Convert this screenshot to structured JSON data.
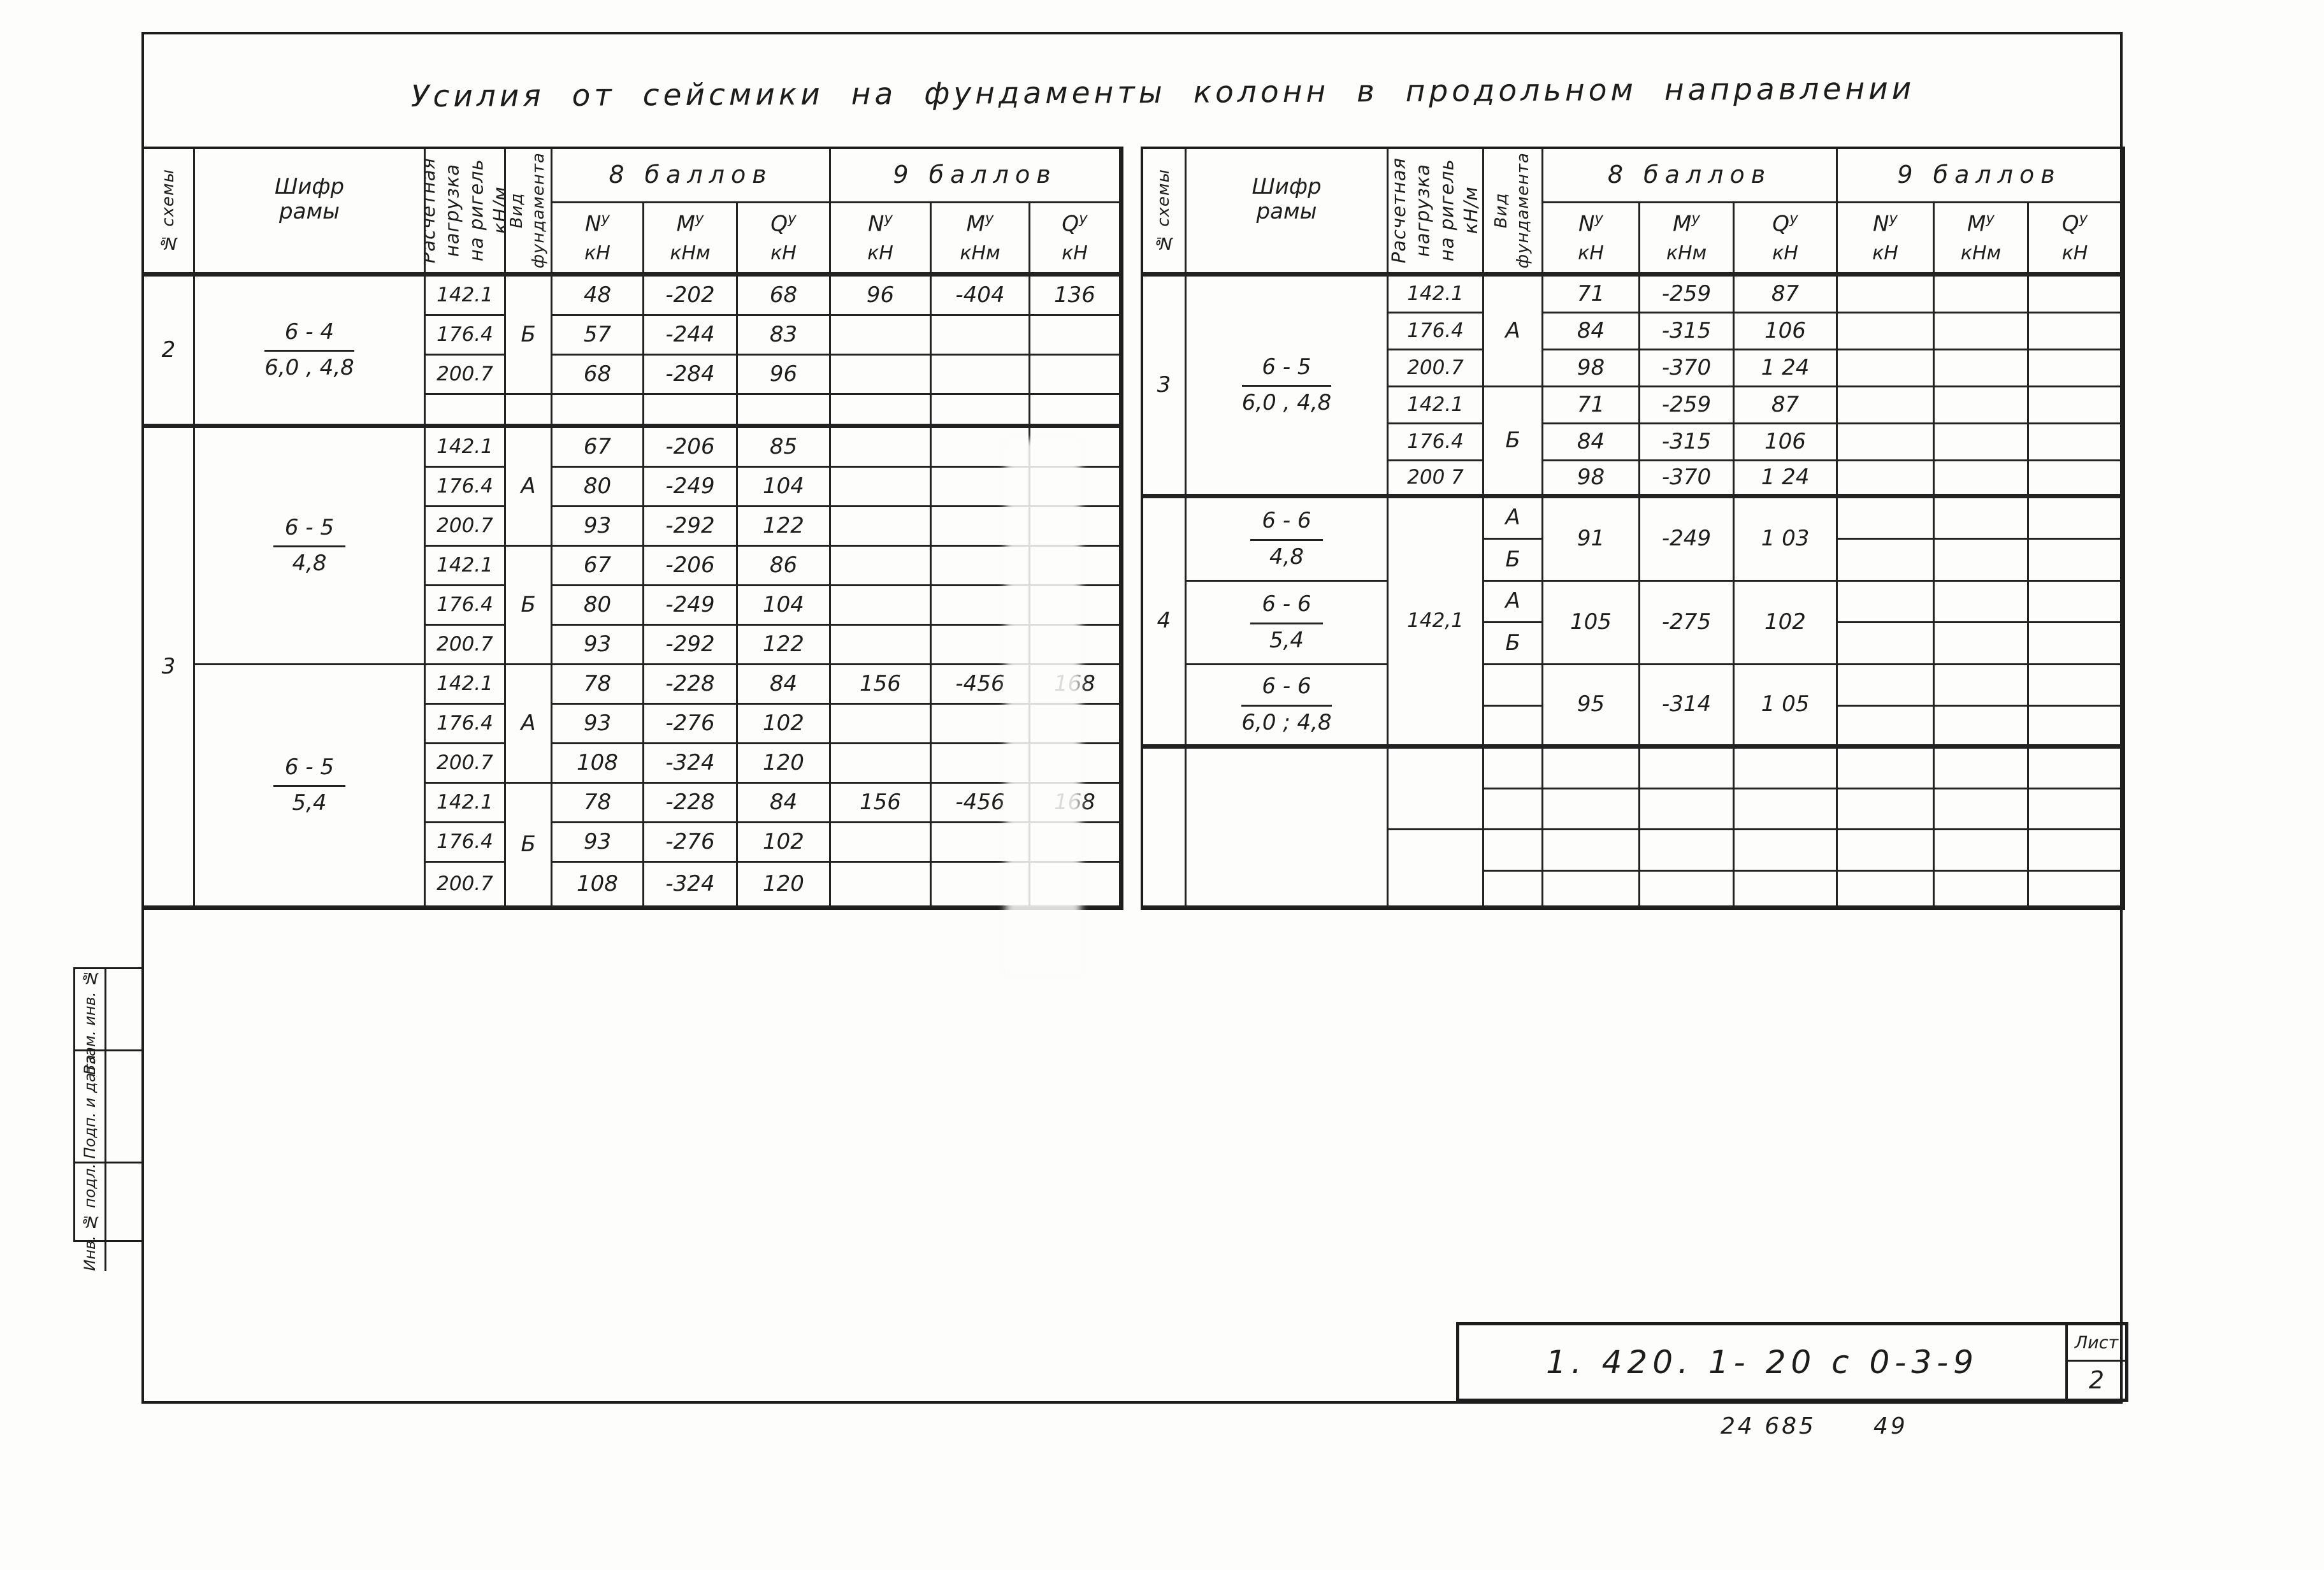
{
  "title": "Усилия  от  сейсмики   на  фундаменты  колонн  в  продольном   направлении",
  "common": {
    "sup": "у"
  },
  "side_stamp": {
    "boxes": [
      {
        "label": "Взам. инв. №"
      },
      {
        "label": "Подп. и дата"
      },
      {
        "label": "Инв. № подл."
      }
    ]
  },
  "title_block": {
    "doc_number": "1. 420. 1- 20 с   0-3-9",
    "sheet_label": "Лист",
    "sheet_number": "2",
    "code_left": "24 685",
    "code_right": "49"
  },
  "left_table": {
    "cells": [
      {
        "r": 1,
        "c": 1,
        "rs": 2,
        "rot": true,
        "t": "№ схемы",
        "n": "column-header-scheme"
      },
      {
        "r": 1,
        "c": 2,
        "rs": 2,
        "t": "Шифр\nрамы",
        "n": "column-header-frame-code"
      },
      {
        "r": 1,
        "c": 3,
        "rs": 2,
        "rot": true,
        "big": true,
        "t": "Расчетная\nнагрузка\nна ригель\nкН/м",
        "n": "column-header-load"
      },
      {
        "r": 1,
        "c": 4,
        "rs": 2,
        "rot": true,
        "t": "Вид\nфундамента",
        "n": "column-header-foundation-type"
      },
      {
        "r": 1,
        "c": 5,
        "cs": 3,
        "t": "8 баллов",
        "cls": "group-head",
        "n": "group-header-8-points"
      },
      {
        "r": 1,
        "c": 8,
        "cs": 3,
        "t": "9 баллов",
        "cls": "group-head",
        "n": "group-header-9-points"
      },
      {
        "r": 2,
        "c": 5,
        "h": [
          "N",
          "кН"
        ],
        "n": "column-header-n8"
      },
      {
        "r": 2,
        "c": 6,
        "h": [
          "M",
          "кНм"
        ],
        "n": "column-header-m8"
      },
      {
        "r": 2,
        "c": 7,
        "h": [
          "Q",
          "кН"
        ],
        "n": "column-header-q8"
      },
      {
        "r": 2,
        "c": 8,
        "h": [
          "N",
          "кН"
        ],
        "n": "column-header-n9"
      },
      {
        "r": 2,
        "c": 9,
        "h": [
          "M",
          "кНм"
        ],
        "n": "column-header-m9"
      },
      {
        "r": 2,
        "c": 10,
        "h": [
          "Q",
          "кН"
        ],
        "n": "column-header-q9"
      },
      {
        "r": 3,
        "c": 1,
        "rs": 4,
        "t": "2",
        "n": "scheme-number-cell"
      },
      {
        "r": 7,
        "c": 1,
        "rs": 12,
        "t": "3",
        "n": "scheme-number-cell"
      },
      {
        "r": 3,
        "c": 2,
        "rs": 4,
        "frac": [
          "6 - 4",
          "6,0 , 4,8"
        ],
        "n": "frame-code-cell"
      },
      {
        "r": 7,
        "c": 2,
        "rs": 6,
        "frac": [
          "6 - 5",
          "4,8"
        ],
        "n": "frame-code-cell"
      },
      {
        "r": 13,
        "c": 2,
        "rs": 6,
        "frac": [
          "6 - 5",
          "5,4"
        ],
        "n": "frame-code-cell"
      },
      {
        "r": 3,
        "c": 3,
        "t": "142.1",
        "cls": "load",
        "n": "load-value-cell"
      },
      {
        "r": 4,
        "c": 3,
        "t": "176.4",
        "cls": "load",
        "n": "load-value-cell"
      },
      {
        "r": 5,
        "c": 3,
        "t": "200.7",
        "cls": "load",
        "n": "load-value-cell"
      },
      {
        "r": 7,
        "c": 3,
        "t": "142.1",
        "cls": "load",
        "n": "load-value-cell"
      },
      {
        "r": 8,
        "c": 3,
        "t": "176.4",
        "cls": "load",
        "n": "load-value-cell"
      },
      {
        "r": 9,
        "c": 3,
        "t": "200.7",
        "cls": "load",
        "n": "load-value-cell"
      },
      {
        "r": 10,
        "c": 3,
        "t": "142.1",
        "cls": "load",
        "n": "load-value-cell"
      },
      {
        "r": 11,
        "c": 3,
        "t": "176.4",
        "cls": "load",
        "n": "load-value-cell"
      },
      {
        "r": 12,
        "c": 3,
        "t": "200.7",
        "cls": "load",
        "n": "load-value-cell"
      },
      {
        "r": 13,
        "c": 3,
        "t": "142.1",
        "cls": "load",
        "n": "load-value-cell"
      },
      {
        "r": 14,
        "c": 3,
        "t": "176.4",
        "cls": "load",
        "n": "load-value-cell"
      },
      {
        "r": 15,
        "c": 3,
        "t": "200.7",
        "cls": "load",
        "n": "load-value-cell"
      },
      {
        "r": 16,
        "c": 3,
        "t": "142.1",
        "cls": "load",
        "n": "load-value-cell"
      },
      {
        "r": 17,
        "c": 3,
        "t": "176.4",
        "cls": "load",
        "n": "load-value-cell"
      },
      {
        "r": 18,
        "c": 3,
        "t": "200.7",
        "cls": "load",
        "n": "load-value-cell"
      },
      {
        "r": 3,
        "c": 4,
        "rs": 3,
        "t": "Б",
        "n": "foundation-type-cell"
      },
      {
        "r": 7,
        "c": 4,
        "rs": 3,
        "t": "А",
        "n": "foundation-type-cell"
      },
      {
        "r": 10,
        "c": 4,
        "rs": 3,
        "t": "Б",
        "n": "foundation-type-cell"
      },
      {
        "r": 13,
        "c": 4,
        "rs": 3,
        "t": "А",
        "n": "foundation-type-cell"
      },
      {
        "r": 16,
        "c": 4,
        "rs": 3,
        "t": "Б",
        "n": "foundation-type-cell"
      },
      {
        "r": 3,
        "c": 5,
        "t": "48",
        "n": "force-value-cell"
      },
      {
        "r": 3,
        "c": 6,
        "t": "-202",
        "n": "force-value-cell"
      },
      {
        "r": 3,
        "c": 7,
        "t": "68",
        "n": "force-value-cell"
      },
      {
        "r": 3,
        "c": 8,
        "t": "96",
        "n": "force-value-cell"
      },
      {
        "r": 3,
        "c": 9,
        "t": "-404",
        "n": "force-value-cell"
      },
      {
        "r": 3,
        "c": 10,
        "t": "136",
        "n": "force-value-cell"
      },
      {
        "r": 4,
        "c": 5,
        "t": "57",
        "n": "force-value-cell"
      },
      {
        "r": 4,
        "c": 6,
        "t": "-244",
        "n": "force-value-cell"
      },
      {
        "r": 4,
        "c": 7,
        "t": "83",
        "n": "force-value-cell"
      },
      {
        "r": 5,
        "c": 5,
        "t": "68",
        "n": "force-value-cell"
      },
      {
        "r": 5,
        "c": 6,
        "t": "-284",
        "n": "force-value-cell"
      },
      {
        "r": 5,
        "c": 7,
        "t": "96",
        "n": "force-value-cell"
      },
      {
        "r": 7,
        "c": 5,
        "t": "67",
        "n": "force-value-cell"
      },
      {
        "r": 7,
        "c": 6,
        "t": "-206",
        "n": "force-value-cell"
      },
      {
        "r": 7,
        "c": 7,
        "t": "85",
        "n": "force-value-cell"
      },
      {
        "r": 8,
        "c": 5,
        "t": "80",
        "n": "force-value-cell"
      },
      {
        "r": 8,
        "c": 6,
        "t": "-249",
        "n": "force-value-cell"
      },
      {
        "r": 8,
        "c": 7,
        "t": "104",
        "n": "force-value-cell"
      },
      {
        "r": 9,
        "c": 5,
        "t": "93",
        "n": "force-value-cell"
      },
      {
        "r": 9,
        "c": 6,
        "t": "-292",
        "n": "force-value-cell"
      },
      {
        "r": 9,
        "c": 7,
        "t": "122",
        "n": "force-value-cell"
      },
      {
        "r": 10,
        "c": 5,
        "t": "67",
        "n": "force-value-cell"
      },
      {
        "r": 10,
        "c": 6,
        "t": "-206",
        "n": "force-value-cell"
      },
      {
        "r": 10,
        "c": 7,
        "t": "86",
        "n": "force-value-cell"
      },
      {
        "r": 11,
        "c": 5,
        "t": "80",
        "n": "force-value-cell"
      },
      {
        "r": 11,
        "c": 6,
        "t": "-249",
        "n": "force-value-cell"
      },
      {
        "r": 11,
        "c": 7,
        "t": "104",
        "n": "force-value-cell"
      },
      {
        "r": 12,
        "c": 5,
        "t": "93",
        "n": "force-value-cell"
      },
      {
        "r": 12,
        "c": 6,
        "t": "-292",
        "n": "force-value-cell"
      },
      {
        "r": 12,
        "c": 7,
        "t": "122",
        "n": "force-value-cell"
      },
      {
        "r": 13,
        "c": 5,
        "t": "78",
        "n": "force-value-cell"
      },
      {
        "r": 13,
        "c": 6,
        "t": "-228",
        "n": "force-value-cell"
      },
      {
        "r": 13,
        "c": 7,
        "t": "84",
        "n": "force-value-cell"
      },
      {
        "r": 13,
        "c": 8,
        "t": "156",
        "n": "force-value-cell"
      },
      {
        "r": 13,
        "c": 9,
        "t": "-456",
        "n": "force-value-cell"
      },
      {
        "r": 13,
        "c": 10,
        "t": "168",
        "n": "force-value-cell"
      },
      {
        "r": 14,
        "c": 5,
        "t": "93",
        "n": "force-value-cell"
      },
      {
        "r": 14,
        "c": 6,
        "t": "-276",
        "n": "force-value-cell"
      },
      {
        "r": 14,
        "c": 7,
        "t": "102",
        "n": "force-value-cell"
      },
      {
        "r": 15,
        "c": 5,
        "t": "108",
        "n": "force-value-cell"
      },
      {
        "r": 15,
        "c": 6,
        "t": "-324",
        "n": "force-value-cell"
      },
      {
        "r": 15,
        "c": 7,
        "t": "120",
        "n": "force-value-cell"
      },
      {
        "r": 16,
        "c": 5,
        "t": "78",
        "n": "force-value-cell"
      },
      {
        "r": 16,
        "c": 6,
        "t": "-228",
        "n": "force-value-cell"
      },
      {
        "r": 16,
        "c": 7,
        "t": "84",
        "n": "force-value-cell"
      },
      {
        "r": 16,
        "c": 8,
        "t": "156",
        "n": "force-value-cell"
      },
      {
        "r": 16,
        "c": 9,
        "t": "-456",
        "n": "force-value-cell"
      },
      {
        "r": 16,
        "c": 10,
        "t": "168",
        "n": "force-value-cell"
      },
      {
        "r": 17,
        "c": 5,
        "t": "93",
        "n": "force-value-cell"
      },
      {
        "r": 17,
        "c": 6,
        "t": "-276",
        "n": "force-value-cell"
      },
      {
        "r": 17,
        "c": 7,
        "t": "102",
        "n": "force-value-cell"
      },
      {
        "r": 18,
        "c": 5,
        "t": "108",
        "n": "force-value-cell"
      },
      {
        "r": 18,
        "c": 6,
        "t": "-324",
        "n": "force-value-cell"
      },
      {
        "r": 18,
        "c": 7,
        "t": "120",
        "n": "force-value-cell"
      }
    ]
  },
  "right_table": {
    "cells": [
      {
        "r": 1,
        "c": 1,
        "rs": 2,
        "rot": true,
        "t": "№ схемы",
        "n": "column-header-scheme"
      },
      {
        "r": 1,
        "c": 2,
        "rs": 2,
        "t": "Шифр\nрамы",
        "n": "column-header-frame-code"
      },
      {
        "r": 1,
        "c": 3,
        "rs": 2,
        "rot": true,
        "big": true,
        "t": "Расчетная\nнагрузка\nна ригель\nкН/м",
        "n": "column-header-load"
      },
      {
        "r": 1,
        "c": 4,
        "rs": 2,
        "rot": true,
        "t": "Вид\nфундамента",
        "n": "column-header-foundation-type"
      },
      {
        "r": 1,
        "c": 5,
        "cs": 3,
        "t": "8 баллов",
        "cls": "group-head",
        "n": "group-header-8-points"
      },
      {
        "r": 1,
        "c": 8,
        "cs": 3,
        "t": "9 баллов",
        "cls": "group-head",
        "n": "group-header-9-points"
      },
      {
        "r": 2,
        "c": 5,
        "h": [
          "N",
          "кН"
        ],
        "n": "column-header-n8"
      },
      {
        "r": 2,
        "c": 6,
        "h": [
          "M",
          "кНм"
        ],
        "n": "column-header-m8"
      },
      {
        "r": 2,
        "c": 7,
        "h": [
          "Q",
          "кН"
        ],
        "n": "column-header-q8"
      },
      {
        "r": 2,
        "c": 8,
        "h": [
          "N",
          "кН"
        ],
        "n": "column-header-n9"
      },
      {
        "r": 2,
        "c": 9,
        "h": [
          "M",
          "кНм"
        ],
        "n": "column-header-m9"
      },
      {
        "r": 2,
        "c": 10,
        "h": [
          "Q",
          "кН"
        ],
        "n": "column-header-q9"
      },
      {
        "r": 3,
        "c": 1,
        "rs": 6,
        "t": "3",
        "n": "scheme-number-cell"
      },
      {
        "r": 9,
        "c": 1,
        "rs": 6,
        "t": "4",
        "n": "scheme-number-cell"
      },
      {
        "r": 15,
        "c": 1,
        "rs": 4,
        "t": "",
        "n": "scheme-number-cell"
      },
      {
        "r": 3,
        "c": 2,
        "rs": 6,
        "frac": [
          "6 - 5",
          "6,0 , 4,8"
        ],
        "n": "frame-code-cell"
      },
      {
        "r": 9,
        "c": 2,
        "rs": 2,
        "frac": [
          "6 - 6",
          "4,8"
        ],
        "n": "frame-code-cell"
      },
      {
        "r": 11,
        "c": 2,
        "rs": 2,
        "frac": [
          "6 - 6",
          "5,4"
        ],
        "n": "frame-code-cell"
      },
      {
        "r": 13,
        "c": 2,
        "rs": 2,
        "frac": [
          "6 - 6",
          "6,0 ; 4,8"
        ],
        "n": "frame-code-cell"
      },
      {
        "r": 15,
        "c": 2,
        "rs": 4,
        "t": "",
        "n": "frame-code-cell"
      },
      {
        "r": 3,
        "c": 3,
        "t": "142.1",
        "cls": "load",
        "n": "load-value-cell"
      },
      {
        "r": 4,
        "c": 3,
        "t": "176.4",
        "cls": "load",
        "n": "load-value-cell"
      },
      {
        "r": 5,
        "c": 3,
        "t": "200.7",
        "cls": "load",
        "n": "load-value-cell"
      },
      {
        "r": 6,
        "c": 3,
        "t": "142.1",
        "cls": "load",
        "n": "load-value-cell"
      },
      {
        "r": 7,
        "c": 3,
        "t": "176.4",
        "cls": "load",
        "n": "load-value-cell"
      },
      {
        "r": 8,
        "c": 3,
        "t": "200 7",
        "cls": "load",
        "n": "load-value-cell"
      },
      {
        "r": 9,
        "c": 3,
        "rs": 6,
        "t": "142,1",
        "cls": "load",
        "n": "load-value-cell"
      },
      {
        "r": 15,
        "c": 3,
        "rs": 2,
        "t": "",
        "n": "load-value-cell"
      },
      {
        "r": 17,
        "c": 3,
        "rs": 2,
        "t": "",
        "n": "load-value-cell"
      },
      {
        "r": 3,
        "c": 4,
        "rs": 3,
        "t": "А",
        "n": "foundation-type-cell"
      },
      {
        "r": 6,
        "c": 4,
        "rs": 3,
        "t": "Б",
        "n": "foundation-type-cell"
      },
      {
        "r": 9,
        "c": 4,
        "t": "А",
        "n": "foundation-type-cell"
      },
      {
        "r": 10,
        "c": 4,
        "t": "Б",
        "n": "foundation-type-cell"
      },
      {
        "r": 11,
        "c": 4,
        "t": "А",
        "n": "foundation-type-cell"
      },
      {
        "r": 12,
        "c": 4,
        "t": "Б",
        "n": "foundation-type-cell"
      },
      {
        "r": 3,
        "c": 5,
        "t": "71",
        "n": "force-value-cell"
      },
      {
        "r": 3,
        "c": 6,
        "t": "-259",
        "n": "force-value-cell"
      },
      {
        "r": 3,
        "c": 7,
        "t": "87",
        "n": "force-value-cell"
      },
      {
        "r": 4,
        "c": 5,
        "t": "84",
        "n": "force-value-cell"
      },
      {
        "r": 4,
        "c": 6,
        "t": "-315",
        "n": "force-value-cell"
      },
      {
        "r": 4,
        "c": 7,
        "t": "106",
        "n": "force-value-cell"
      },
      {
        "r": 5,
        "c": 5,
        "t": "98",
        "n": "force-value-cell"
      },
      {
        "r": 5,
        "c": 6,
        "t": "-370",
        "n": "force-value-cell"
      },
      {
        "r": 5,
        "c": 7,
        "t": "1 24",
        "n": "force-value-cell"
      },
      {
        "r": 6,
        "c": 5,
        "t": "71",
        "n": "force-value-cell"
      },
      {
        "r": 6,
        "c": 6,
        "t": "-259",
        "n": "force-value-cell"
      },
      {
        "r": 6,
        "c": 7,
        "t": "87",
        "n": "force-value-cell"
      },
      {
        "r": 7,
        "c": 5,
        "t": "84",
        "n": "force-value-cell"
      },
      {
        "r": 7,
        "c": 6,
        "t": "-315",
        "n": "force-value-cell"
      },
      {
        "r": 7,
        "c": 7,
        "t": "106",
        "n": "force-value-cell"
      },
      {
        "r": 8,
        "c": 5,
        "t": "98",
        "n": "force-value-cell"
      },
      {
        "r": 8,
        "c": 6,
        "t": "-370",
        "n": "force-value-cell"
      },
      {
        "r": 8,
        "c": 7,
        "t": "1 24",
        "n": "force-value-cell"
      },
      {
        "r": 9,
        "c": 5,
        "rs": 2,
        "t": "91",
        "n": "force-value-cell"
      },
      {
        "r": 9,
        "c": 6,
        "rs": 2,
        "t": "-249",
        "n": "force-value-cell"
      },
      {
        "r": 9,
        "c": 7,
        "rs": 2,
        "t": "1 03",
        "n": "force-value-cell"
      },
      {
        "r": 11,
        "c": 5,
        "rs": 2,
        "t": "105",
        "n": "force-value-cell"
      },
      {
        "r": 11,
        "c": 6,
        "rs": 2,
        "t": "-275",
        "n": "force-value-cell"
      },
      {
        "r": 11,
        "c": 7,
        "rs": 2,
        "t": "102",
        "n": "force-value-cell"
      },
      {
        "r": 13,
        "c": 5,
        "rs": 2,
        "t": "95",
        "n": "force-value-cell"
      },
      {
        "r": 13,
        "c": 6,
        "rs": 2,
        "t": "-314",
        "n": "force-value-cell"
      },
      {
        "r": 13,
        "c": 7,
        "rs": 2,
        "t": "1 05",
        "n": "force-value-cell"
      }
    ]
  }
}
